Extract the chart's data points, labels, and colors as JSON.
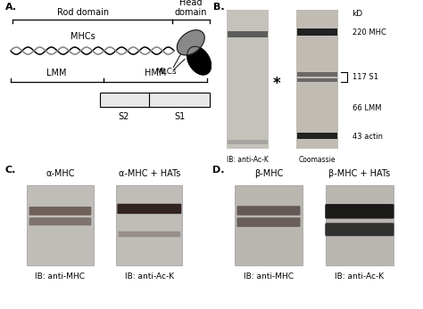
{
  "panel_A_label": "A.",
  "panel_B_label": "B.",
  "panel_C_label": "C.",
  "panel_D_label": "D.",
  "rod_domain_label": "Rod domain",
  "head_domain_label": "Head\ndomain",
  "MHCs_label": "MHCs",
  "MLCs_label": "MLCs",
  "LMM_label": "LMM",
  "HMM_label": "HMM",
  "S1_label": "S1",
  "S2_label": "S2",
  "kD_label": "kD",
  "mw_labels": [
    "220 MHC",
    "117 S1",
    "66 LMM",
    "43 actin"
  ],
  "gel_label1": "IB: anti-Ac-K",
  "gel_label2": "Coomassie",
  "panel_C_labels": [
    "α-MHC",
    "α-MHC + HATs"
  ],
  "panel_C_iblabels": [
    "IB: anti-MHC",
    "IB: anti-Ac-K"
  ],
  "panel_D_labels": [
    "β-MHC",
    "β-MHC + HATs"
  ],
  "panel_D_iblabels": [
    "IB: anti-MHC",
    "IB: anti-Ac-K"
  ],
  "bg_color": "#ffffff"
}
